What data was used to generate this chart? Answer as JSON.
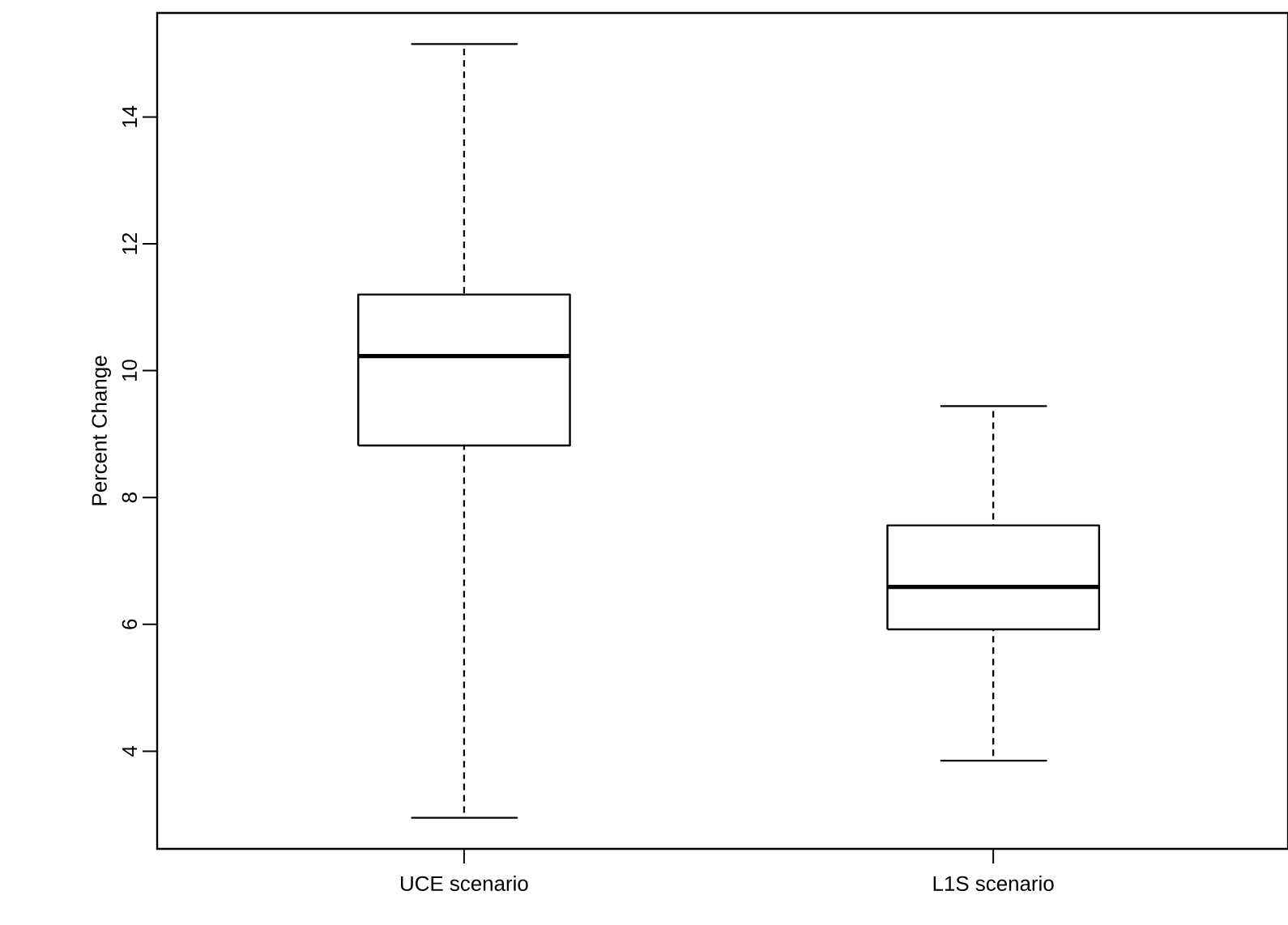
{
  "chart_data": {
    "type": "box",
    "ylabel": "Percent Change",
    "color": "#000000",
    "categories": [
      "UCE scenario",
      "L1S scenario"
    ],
    "boxes": [
      {
        "low": 2.95,
        "q1": 8.82,
        "median": 10.23,
        "q3": 11.2,
        "high": 15.15
      },
      {
        "low": 3.85,
        "q1": 5.92,
        "median": 6.59,
        "q3": 7.56,
        "high": 9.44
      }
    ],
    "ylim": [
      2.46,
      15.64
    ],
    "yticks": [
      4,
      6,
      8,
      10,
      12,
      14
    ],
    "grid": false
  }
}
